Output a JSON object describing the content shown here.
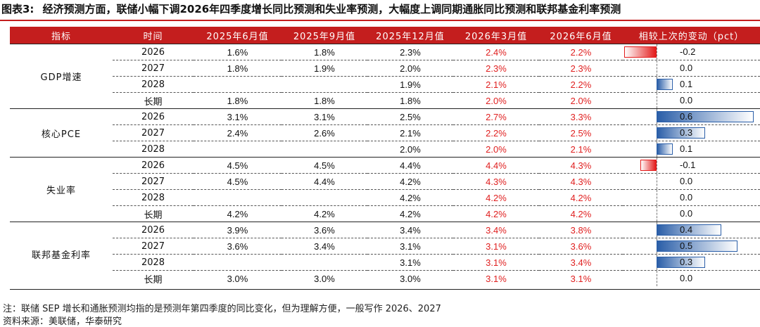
{
  "title": {
    "label": "图表3:",
    "text": "经济预测方面，联储小幅下调2026年四季度增长同比预测和失业率预测，大幅度上调同期通胀同比预测和联邦基金利率预测"
  },
  "table": {
    "headers": [
      "指标",
      "时间",
      "2025年6月值",
      "2025年9月值",
      "2025年12月值",
      "2026年3月值",
      "2026年6月值",
      "相较上次的变动（pct）"
    ],
    "groups": [
      {
        "name": "GDP增速",
        "rows": [
          {
            "time": "2026",
            "v1": "1.6%",
            "v2": "1.8%",
            "v3": "2.3%",
            "v4": "2.4%",
            "v5": "2.2%",
            "change": -0.2,
            "change_label": "-0.2"
          },
          {
            "time": "2027",
            "v1": "1.8%",
            "v2": "1.9%",
            "v3": "2.0%",
            "v4": "2.3%",
            "v5": "2.3%",
            "change": 0.0,
            "change_label": "0.0"
          },
          {
            "time": "2028",
            "v1": "",
            "v2": "",
            "v3": "1.9%",
            "v4": "2.1%",
            "v5": "2.2%",
            "change": 0.1,
            "change_label": "0.1"
          },
          {
            "time": "长期",
            "v1": "1.8%",
            "v2": "1.8%",
            "v3": "1.8%",
            "v4": "2.0%",
            "v5": "2.0%",
            "change": 0.0,
            "change_label": "0.0"
          }
        ]
      },
      {
        "name": "核心PCE",
        "rows": [
          {
            "time": "2026",
            "v1": "3.1%",
            "v2": "3.1%",
            "v3": "2.5%",
            "v4": "2.7%",
            "v5": "3.3%",
            "change": 0.6,
            "change_label": "0.6"
          },
          {
            "time": "2027",
            "v1": "2.4%",
            "v2": "2.6%",
            "v3": "2.1%",
            "v4": "2.2%",
            "v5": "2.5%",
            "change": 0.3,
            "change_label": "0.3"
          },
          {
            "time": "2028",
            "v1": "",
            "v2": "",
            "v3": "2.0%",
            "v4": "2.0%",
            "v5": "2.1%",
            "change": 0.1,
            "change_label": "0.1"
          }
        ]
      },
      {
        "name": "失业率",
        "rows": [
          {
            "time": "2026",
            "v1": "4.5%",
            "v2": "4.5%",
            "v3": "4.4%",
            "v4": "4.4%",
            "v5": "4.3%",
            "change": -0.1,
            "change_label": "-0.1"
          },
          {
            "time": "2027",
            "v1": "4.5%",
            "v2": "4.4%",
            "v3": "4.2%",
            "v4": "4.3%",
            "v5": "4.3%",
            "change": 0.0,
            "change_label": "0.0"
          },
          {
            "time": "2028",
            "v1": "",
            "v2": "",
            "v3": "4.2%",
            "v4": "4.2%",
            "v5": "4.2%",
            "change": 0.0,
            "change_label": "0.0"
          },
          {
            "time": "长期",
            "v1": "4.2%",
            "v2": "4.2%",
            "v3": "4.2%",
            "v4": "4.2%",
            "v5": "4.2%",
            "change": 0.0,
            "change_label": "0.0"
          }
        ]
      },
      {
        "name": "联邦基金利率",
        "rows": [
          {
            "time": "2026",
            "v1": "3.9%",
            "v2": "3.6%",
            "v3": "3.4%",
            "v4": "3.4%",
            "v5": "3.8%",
            "change": 0.4,
            "change_label": "0.4"
          },
          {
            "time": "2027",
            "v1": "3.6%",
            "v2": "3.4%",
            "v3": "3.1%",
            "v4": "3.1%",
            "v5": "3.6%",
            "change": 0.5,
            "change_label": "0.5"
          },
          {
            "time": "2028",
            "v1": "",
            "v2": "",
            "v3": "3.1%",
            "v4": "3.1%",
            "v5": "3.4%",
            "change": 0.3,
            "change_label": "0.3"
          },
          {
            "time": "长期",
            "v1": "3.0%",
            "v2": "3.0%",
            "v3": "3.0%",
            "v4": "3.1%",
            "v5": "3.1%",
            "change": 0.0,
            "change_label": "0.0"
          }
        ]
      }
    ]
  },
  "colors": {
    "header_bg": "#c41e1e",
    "highlight_text": "#e02020",
    "positive_bar": "#2a5ea8",
    "negative_bar": "#e31b1b"
  },
  "notes": {
    "note": "注：联储 SEP 增长和通胀预测均指的是预测年第四季度的同比变化，但为理解方便，一般写作 2026、2027",
    "source": "资料来源：美联储，华泰研究"
  }
}
